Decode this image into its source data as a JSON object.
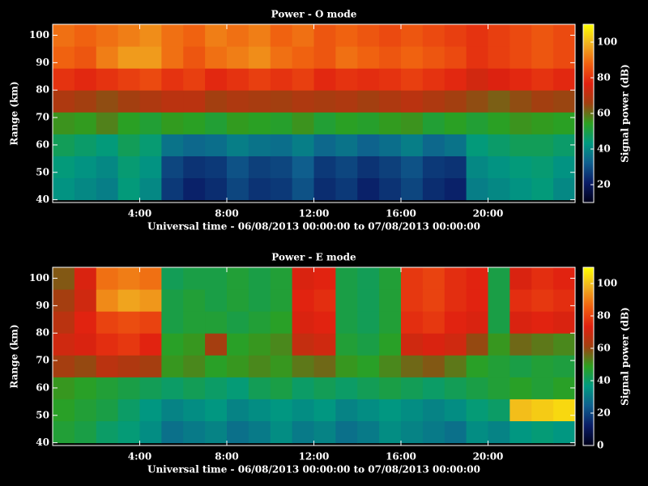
{
  "chart_data": [
    {
      "type": "heatmap",
      "title": "Power - O mode",
      "xlabel": "Universal time - 06/08/2013 00:00:00 to 07/08/2013 00:00:00",
      "ylabel": "Range (km)",
      "zlabel": "Signal power (dB)",
      "x_bins": [
        0,
        1,
        2,
        3,
        4,
        5,
        6,
        7,
        8,
        9,
        10,
        11,
        12,
        13,
        14,
        15,
        16,
        17,
        18,
        19,
        20,
        21,
        22,
        23,
        24
      ],
      "y_bins": [
        40,
        48,
        56,
        64,
        72,
        80,
        88,
        96,
        104
      ],
      "z": [
        [
          42,
          40,
          38,
          44,
          40,
          26,
          22,
          24,
          28,
          25,
          26,
          30,
          24,
          26,
          22,
          25,
          28,
          24,
          22,
          38,
          40,
          42,
          44,
          40
        ],
        [
          44,
          42,
          40,
          45,
          42,
          28,
          25,
          26,
          30,
          27,
          28,
          32,
          26,
          28,
          25,
          27,
          30,
          26,
          25,
          40,
          42,
          44,
          45,
          42
        ],
        [
          48,
          46,
          44,
          48,
          45,
          36,
          34,
          35,
          38,
          36,
          35,
          38,
          34,
          36,
          33,
          35,
          38,
          34,
          36,
          44,
          46,
          48,
          48,
          46
        ],
        [
          56,
          55,
          58,
          54,
          52,
          55,
          54,
          52,
          55,
          54,
          53,
          56,
          52,
          54,
          53,
          55,
          56,
          52,
          54,
          52,
          54,
          56,
          55,
          54
        ],
        [
          68,
          66,
          64,
          66,
          68,
          70,
          70,
          66,
          68,
          67,
          66,
          68,
          67,
          68,
          66,
          68,
          70,
          68,
          66,
          64,
          62,
          64,
          66,
          65
        ],
        [
          80,
          78,
          80,
          82,
          84,
          80,
          82,
          78,
          80,
          82,
          80,
          82,
          78,
          80,
          79,
          80,
          82,
          80,
          78,
          74,
          76,
          78,
          80,
          78
        ],
        [
          88,
          86,
          92,
          96,
          96,
          90,
          86,
          90,
          92,
          94,
          90,
          88,
          86,
          90,
          88,
          86,
          88,
          86,
          84,
          80,
          82,
          84,
          86,
          84
        ],
        [
          90,
          88,
          90,
          92,
          94,
          90,
          88,
          92,
          90,
          92,
          88,
          90,
          86,
          88,
          86,
          84,
          86,
          84,
          82,
          80,
          82,
          84,
          86,
          84
        ]
      ],
      "xlim": [
        0,
        24
      ],
      "xticks": [
        {
          "value": 4,
          "label": "4:00"
        },
        {
          "value": 8,
          "label": "8:00"
        },
        {
          "value": 12,
          "label": "12:00"
        },
        {
          "value": 16,
          "label": "16:00"
        },
        {
          "value": 20,
          "label": "20:00"
        }
      ],
      "ylim": [
        39,
        104
      ],
      "yticks": [
        40,
        50,
        60,
        70,
        80,
        90,
        100
      ],
      "zlim": [
        10,
        110
      ],
      "zticks": [
        20,
        40,
        60,
        80,
        100
      ],
      "colormap": [
        "#000018",
        "#0a1c66",
        "#0f5f8e",
        "#009a80",
        "#2ca020",
        "#a04010",
        "#e02010",
        "#f06010",
        "#f0b020",
        "#ffff00"
      ]
    },
    {
      "type": "heatmap",
      "title": "Power - E mode",
      "xlabel": "Universal time - 06/08/2013 00:00:00 to 07/08/2013 00:00:00",
      "ylabel": "Range (km)",
      "zlabel": "Signal power (dB)",
      "x_bins": [
        0,
        1,
        2,
        3,
        4,
        5,
        6,
        7,
        8,
        9,
        10,
        11,
        12,
        13,
        14,
        15,
        16,
        17,
        18,
        19,
        20,
        21,
        22,
        23,
        24
      ],
      "y_bins": [
        40,
        48,
        56,
        64,
        72,
        80,
        88,
        96,
        104
      ],
      "z": [
        [
          46,
          44,
          40,
          38,
          34,
          28,
          30,
          32,
          28,
          30,
          34,
          30,
          32,
          28,
          30,
          34,
          32,
          30,
          28,
          34,
          32,
          36,
          38,
          36
        ],
        [
          48,
          46,
          44,
          40,
          36,
          32,
          34,
          36,
          32,
          34,
          36,
          34,
          36,
          32,
          34,
          36,
          34,
          32,
          34,
          38,
          40,
          100,
          102,
          104
        ],
        [
          50,
          48,
          46,
          44,
          42,
          40,
          42,
          40,
          38,
          42,
          44,
          40,
          42,
          40,
          42,
          44,
          42,
          40,
          42,
          44,
          46,
          48,
          46,
          48
        ],
        [
          62,
          60,
          66,
          64,
          62,
          50,
          52,
          48,
          50,
          52,
          50,
          54,
          56,
          50,
          48,
          52,
          56,
          58,
          54,
          48,
          46,
          44,
          46,
          45
        ],
        [
          70,
          72,
          76,
          78,
          74,
          48,
          50,
          62,
          48,
          50,
          52,
          68,
          70,
          46,
          44,
          48,
          70,
          72,
          70,
          60,
          50,
          56,
          54,
          52
        ],
        [
          66,
          74,
          80,
          82,
          80,
          44,
          46,
          46,
          44,
          46,
          48,
          72,
          74,
          44,
          42,
          46,
          76,
          78,
          74,
          72,
          44,
          72,
          74,
          72
        ],
        [
          62,
          70,
          92,
          96,
          94,
          44,
          46,
          44,
          46,
          44,
          46,
          74,
          76,
          44,
          42,
          46,
          78,
          80,
          76,
          74,
          44,
          76,
          78,
          76
        ],
        [
          58,
          72,
          88,
          90,
          88,
          42,
          44,
          44,
          46,
          44,
          46,
          72,
          74,
          44,
          42,
          46,
          78,
          80,
          76,
          74,
          44,
          72,
          76,
          74
        ]
      ],
      "xlim": [
        0,
        24
      ],
      "xticks": [
        {
          "value": 4,
          "label": "4:00"
        },
        {
          "value": 8,
          "label": "8:00"
        },
        {
          "value": 12,
          "label": "12:00"
        },
        {
          "value": 16,
          "label": "16:00"
        },
        {
          "value": 20,
          "label": "20:00"
        }
      ],
      "ylim": [
        39,
        104
      ],
      "yticks": [
        40,
        50,
        60,
        70,
        80,
        90,
        100
      ],
      "zlim": [
        0,
        110
      ],
      "zticks": [
        0,
        20,
        40,
        60,
        80,
        100
      ],
      "colormap": [
        "#000018",
        "#0a1c66",
        "#0f5f8e",
        "#009a80",
        "#2ca020",
        "#a04010",
        "#e02010",
        "#f06010",
        "#f0b020",
        "#ffff00"
      ]
    }
  ]
}
